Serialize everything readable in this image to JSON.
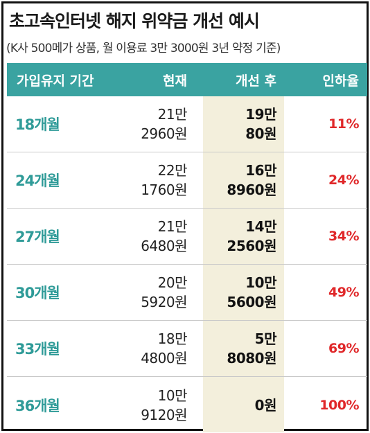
{
  "title": "초고속인터넷 해지 위약금 개선 예시",
  "subtitle": "(K사 500메가 상품, 월 이용료 3만 3000원 3년 약정 기준)",
  "columns": [
    "가입유지 기간",
    "현재",
    "개선 후",
    "인하율"
  ],
  "rows": [
    {
      "period": "18개월",
      "current": [
        "21만",
        "2960원"
      ],
      "improved": [
        "19만",
        "80원"
      ],
      "rate": "11%"
    },
    {
      "period": "24개월",
      "current": [
        "22만",
        "1760원"
      ],
      "improved": [
        "16만",
        "8960원"
      ],
      "rate": "24%"
    },
    {
      "period": "27개월",
      "current": [
        "21만",
        "6480원"
      ],
      "improved": [
        "14만",
        "2560원"
      ],
      "rate": "34%"
    },
    {
      "period": "30개월",
      "current": [
        "20만",
        "5920원"
      ],
      "improved": [
        "10만",
        "5600원"
      ],
      "rate": "49%"
    },
    {
      "period": "33개월",
      "current": [
        "18만",
        "4800원"
      ],
      "improved": [
        "5만",
        "8080원"
      ],
      "rate": "69%"
    },
    {
      "period": "36개월",
      "current": [
        "10만",
        "9120원"
      ],
      "improved": [
        "0원"
      ],
      "rate": "100%"
    }
  ],
  "colors": {
    "header_bg": "#3aa3a1",
    "period_text": "#2f9b98",
    "rate_text": "#e0282a",
    "improved_bg": "#f3efdc"
  }
}
